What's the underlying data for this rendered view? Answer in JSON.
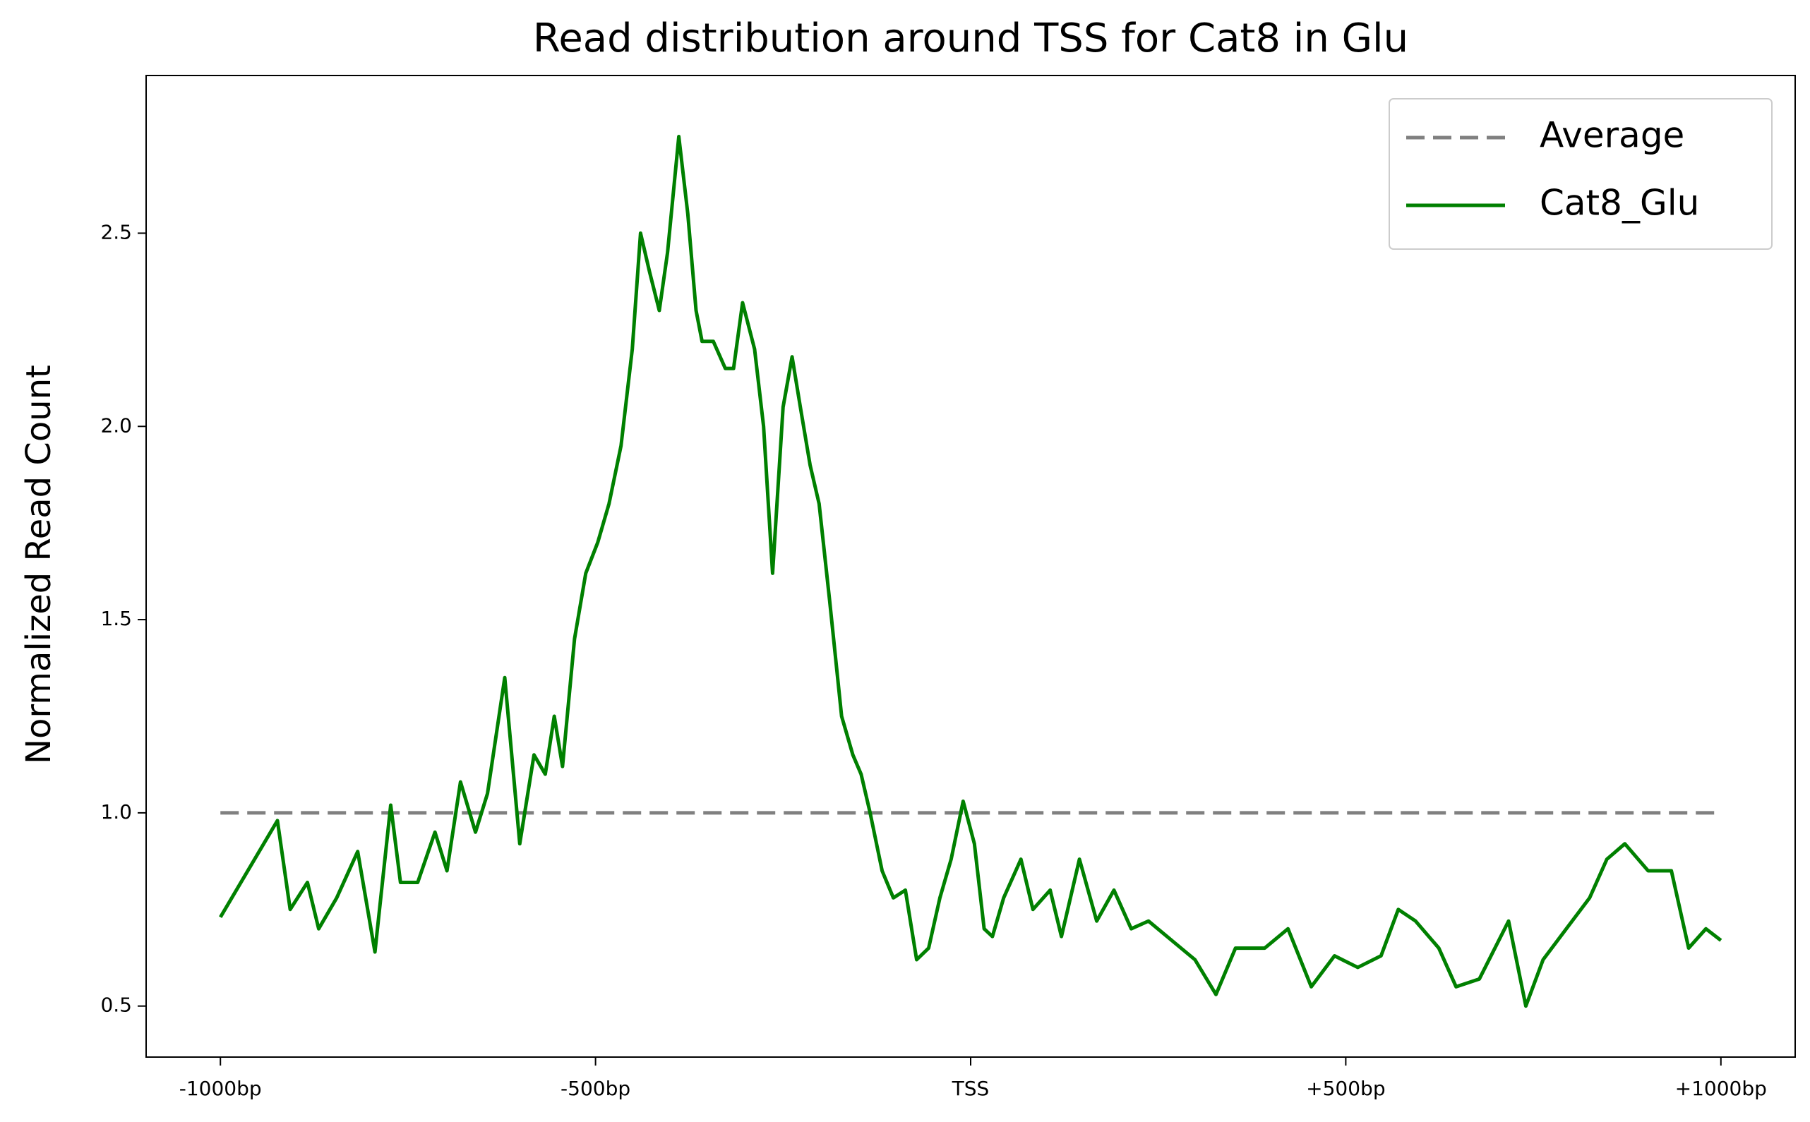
{
  "chart_data": {
    "type": "line",
    "title": "Read distribution around TSS for Cat8 in Glu",
    "y_label": "Normalized Read Count",
    "xlim": [
      -1099,
      1099
    ],
    "ylim": [
      0.368,
      2.908
    ],
    "xticks": [
      {
        "value": -1000,
        "label": "-1000bp"
      },
      {
        "value": -500,
        "label": "-500bp"
      },
      {
        "value": 0,
        "label": "TSS"
      },
      {
        "value": 500,
        "label": "+500bp"
      },
      {
        "value": 1000,
        "label": "+1000bp"
      }
    ],
    "yticks": [
      0.5,
      {
        "value": 1.0,
        "label": "1.0"
      },
      1.5,
      {
        "value": 2.0,
        "label": "2.0"
      },
      2.5
    ],
    "legend": "upper right",
    "series": [
      {
        "name": "Average",
        "color": "#808080",
        "dashed": true,
        "x": [
          -1000,
          1000
        ],
        "values": [
          1.0,
          1.0
        ]
      },
      {
        "name": "Cat8_Glu",
        "color": "#008000",
        "dashed": false,
        "x": [
          -1000,
          -924,
          -907,
          -884,
          -869,
          -845,
          -817,
          -794,
          -773,
          -760,
          -737,
          -714,
          -698,
          -680,
          -660,
          -644,
          -621,
          -601,
          -582,
          -567,
          -555,
          -544,
          -528,
          -513,
          -497,
          -482,
          -466,
          -451,
          -440,
          -428,
          -415,
          -404,
          -389,
          -377,
          -366,
          -358,
          -343,
          -327,
          -316,
          -304,
          -288,
          -276,
          -264,
          -250,
          -238,
          -227,
          -214,
          -202,
          -188,
          -172,
          -157,
          -146,
          -134,
          -118,
          -103,
          -87,
          -72,
          -56,
          -41,
          -26,
          -10,
          5,
          18,
          29,
          44,
          67,
          83,
          106,
          121,
          145,
          168,
          191,
          214,
          237,
          268,
          299,
          327,
          353,
          392,
          423,
          454,
          485,
          516,
          547,
          570,
          593,
          624,
          647,
          678,
          717,
          740,
          763,
          794,
          825,
          848,
          872,
          903,
          934,
          957,
          980,
          1000
        ],
        "values": [
          0.73,
          0.98,
          0.75,
          0.82,
          0.7,
          0.78,
          0.9,
          0.64,
          1.02,
          0.82,
          0.82,
          0.95,
          0.85,
          1.08,
          0.95,
          1.05,
          1.35,
          0.92,
          1.15,
          1.1,
          1.25,
          1.12,
          1.45,
          1.62,
          1.7,
          1.8,
          1.95,
          2.2,
          2.5,
          2.4,
          2.3,
          2.45,
          2.75,
          2.55,
          2.3,
          2.22,
          2.22,
          2.15,
          2.15,
          2.32,
          2.2,
          2.0,
          1.62,
          2.05,
          2.18,
          2.05,
          1.9,
          1.8,
          1.55,
          1.25,
          1.15,
          1.1,
          1.0,
          0.85,
          0.78,
          0.8,
          0.62,
          0.65,
          0.78,
          0.88,
          1.03,
          0.92,
          0.7,
          0.68,
          0.78,
          0.88,
          0.75,
          0.8,
          0.68,
          0.88,
          0.72,
          0.8,
          0.7,
          0.72,
          0.67,
          0.62,
          0.53,
          0.65,
          0.65,
          0.7,
          0.55,
          0.63,
          0.6,
          0.63,
          0.75,
          0.72,
          0.65,
          0.55,
          0.57,
          0.72,
          0.5,
          0.62,
          0.7,
          0.78,
          0.88,
          0.92,
          0.85,
          0.85,
          0.65,
          0.7,
          0.67
        ]
      }
    ]
  }
}
